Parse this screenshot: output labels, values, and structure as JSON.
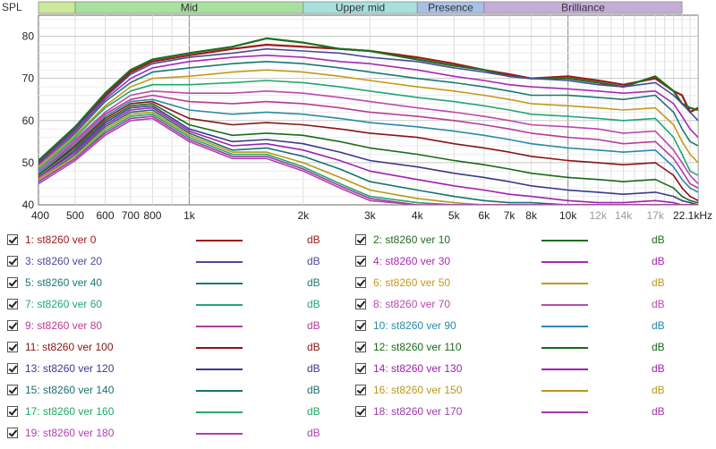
{
  "chart_data": {
    "type": "line",
    "ylabel": "SPL",
    "xlabel": "",
    "title": "",
    "x_scale": "log",
    "xlim": [
      400,
      22050
    ],
    "ylim": [
      40,
      85
    ],
    "yticks": [
      40,
      50,
      60,
      70,
      80
    ],
    "xticks": [
      {
        "v": 400,
        "label": "400",
        "muted": false
      },
      {
        "v": 500,
        "label": "500",
        "muted": false
      },
      {
        "v": 600,
        "label": "600",
        "muted": false
      },
      {
        "v": 700,
        "label": "700",
        "muted": false
      },
      {
        "v": 800,
        "label": "800",
        "muted": false
      },
      {
        "v": 1000,
        "label": "1k",
        "muted": false
      },
      {
        "v": 2000,
        "label": "2k",
        "muted": false
      },
      {
        "v": 3000,
        "label": "3k",
        "muted": false
      },
      {
        "v": 4000,
        "label": "4k",
        "muted": false
      },
      {
        "v": 5000,
        "label": "5k",
        "muted": false
      },
      {
        "v": 6000,
        "label": "6k",
        "muted": false
      },
      {
        "v": 7000,
        "label": "7k",
        "muted": false
      },
      {
        "v": 8000,
        "label": "8k",
        "muted": false
      },
      {
        "v": 10000,
        "label": "10k",
        "muted": false
      },
      {
        "v": 12000,
        "label": "12k",
        "muted": true
      },
      {
        "v": 14000,
        "label": "14k",
        "muted": true
      },
      {
        "v": 17000,
        "label": "17k",
        "muted": true
      },
      {
        "v": 22050,
        "label": "22.1kHz",
        "muted": false
      }
    ],
    "bands": [
      {
        "label": "",
        "from": 400,
        "to": 500,
        "color": "#cce89a"
      },
      {
        "label": "Mid",
        "from": 500,
        "to": 2000,
        "color": "#a8e0a0"
      },
      {
        "label": "Upper mid",
        "from": 2000,
        "to": 4000,
        "color": "#a8e0dc"
      },
      {
        "label": "Presence",
        "from": 4000,
        "to": 6000,
        "color": "#a8c0e4"
      },
      {
        "label": "Brilliance",
        "from": 6000,
        "to": 20000,
        "color": "#c4aed8"
      }
    ],
    "grid": true,
    "legend_position": "bottom",
    "series": [
      {
        "name": "1: st8260 ver 0",
        "unit": "dB",
        "color": "#a01818",
        "x": [
          400,
          500,
          600,
          700,
          800,
          1000,
          1300,
          1600,
          2000,
          2500,
          3000,
          4000,
          5000,
          6000,
          7000,
          8000,
          10000,
          12000,
          14000,
          17000,
          19000,
          20000,
          21000,
          22050
        ],
        "y": [
          50,
          58,
          66,
          71.5,
          74,
          75.5,
          77,
          78,
          77.5,
          77,
          76.5,
          75,
          73.5,
          72,
          71,
          70,
          70.5,
          69.5,
          68.5,
          70,
          67,
          66,
          62,
          63
        ]
      },
      {
        "name": "2: st8260 ver 10",
        "unit": "dB",
        "color": "#1e6e1e",
        "x": [
          400,
          500,
          600,
          700,
          800,
          1000,
          1300,
          1600,
          2000,
          2500,
          3000,
          4000,
          5000,
          6000,
          7000,
          8000,
          10000,
          12000,
          14000,
          17000,
          19000,
          20000,
          21000,
          22050
        ],
        "y": [
          50.5,
          58.5,
          66.5,
          72,
          74.5,
          76,
          77.5,
          79.5,
          78.5,
          77,
          76.5,
          74.5,
          73,
          72,
          70.5,
          70,
          70,
          69,
          68,
          70.5,
          67,
          64,
          63,
          62.5
        ]
      },
      {
        "name": "3: st8260 ver 20",
        "unit": "dB",
        "color": "#4a4a9a",
        "x": [
          400,
          500,
          600,
          700,
          800,
          1000,
          1300,
          1600,
          2000,
          2500,
          3000,
          4000,
          5000,
          6000,
          7000,
          8000,
          10000,
          12000,
          14000,
          17000,
          19000,
          20000,
          21000,
          22050
        ],
        "y": [
          50,
          58,
          65.5,
          71,
          73.5,
          75,
          76,
          77,
          76.5,
          76,
          75,
          74,
          72.5,
          71.5,
          70.5,
          70,
          69.5,
          68.5,
          68,
          69,
          66,
          64,
          62,
          60
        ]
      },
      {
        "name": "4: st8260 ver 30",
        "unit": "dB",
        "color": "#a82ab0",
        "x": [
          400,
          500,
          600,
          700,
          800,
          1000,
          1300,
          1600,
          2000,
          2500,
          3000,
          4000,
          5000,
          6000,
          7000,
          8000,
          10000,
          12000,
          14000,
          17000,
          19000,
          20000,
          21000,
          22050
        ],
        "y": [
          49.5,
          57.5,
          65,
          70,
          72.5,
          74,
          75,
          75.5,
          75,
          74,
          73.5,
          72,
          70.5,
          69.5,
          68.5,
          68,
          67.5,
          67,
          66.5,
          67,
          64,
          61,
          58,
          56
        ]
      },
      {
        "name": "5: st8260 ver 40",
        "unit": "dB",
        "color": "#1a7878",
        "x": [
          400,
          500,
          600,
          700,
          800,
          1000,
          1300,
          1600,
          2000,
          2500,
          3000,
          4000,
          5000,
          6000,
          7000,
          8000,
          10000,
          12000,
          14000,
          17000,
          19000,
          20000,
          21000,
          22050
        ],
        "y": [
          49,
          57,
          64.5,
          69,
          71.5,
          72.5,
          73.5,
          74,
          73.5,
          72.5,
          71.5,
          70,
          69,
          68,
          67,
          66,
          66,
          65.5,
          65,
          66,
          62,
          58,
          55,
          54
        ]
      },
      {
        "name": "6: st8260 ver 50",
        "unit": "dB",
        "color": "#c49a1a",
        "x": [
          400,
          500,
          600,
          700,
          800,
          1000,
          1300,
          1600,
          2000,
          2500,
          3000,
          4000,
          5000,
          6000,
          7000,
          8000,
          10000,
          12000,
          14000,
          17000,
          19000,
          20000,
          21000,
          22050
        ],
        "y": [
          49,
          56.5,
          63.5,
          68,
          70,
          70.5,
          71.5,
          72,
          71.5,
          70.5,
          69.5,
          68,
          67,
          66,
          65,
          64,
          63.5,
          63,
          62.5,
          63,
          59,
          55,
          52,
          50
        ]
      },
      {
        "name": "7: st8260 ver 60",
        "unit": "dB",
        "color": "#1fa870",
        "x": [
          400,
          500,
          600,
          700,
          800,
          1000,
          1300,
          1600,
          2000,
          2500,
          3000,
          4000,
          5000,
          6000,
          7000,
          8000,
          10000,
          12000,
          14000,
          17000,
          19000,
          20000,
          21000,
          22050
        ],
        "y": [
          48.5,
          56,
          63,
          67,
          68.5,
          68.5,
          69,
          69.5,
          69,
          68,
          67,
          65.5,
          64.5,
          63.5,
          62.5,
          61.5,
          61,
          60.5,
          60,
          60.5,
          56,
          52,
          48,
          47
        ]
      },
      {
        "name": "8: st8260 ver 70",
        "unit": "dB",
        "color": "#b84ab0",
        "x": [
          400,
          500,
          600,
          700,
          800,
          1000,
          1300,
          1600,
          2000,
          2500,
          3000,
          4000,
          5000,
          6000,
          7000,
          8000,
          10000,
          12000,
          14000,
          17000,
          19000,
          20000,
          21000,
          22050
        ],
        "y": [
          48,
          55.5,
          62,
          66,
          67,
          66.5,
          66.5,
          67,
          66.5,
          65.5,
          64.5,
          63,
          62,
          61,
          60,
          59,
          58.5,
          58,
          57,
          57.5,
          53,
          50,
          47,
          45
        ]
      },
      {
        "name": "9: st8260 ver 80",
        "unit": "dB",
        "color": "#b83a9a",
        "x": [
          400,
          500,
          600,
          700,
          800,
          1000,
          1300,
          1600,
          2000,
          2500,
          3000,
          4000,
          5000,
          6000,
          7000,
          8000,
          10000,
          12000,
          14000,
          17000,
          19000,
          20000,
          21000,
          22050
        ],
        "y": [
          47.5,
          55,
          61.5,
          65,
          66,
          64.5,
          64,
          64.5,
          64,
          63,
          62,
          61,
          60,
          59,
          58,
          57,
          56,
          55.5,
          54.5,
          55,
          51,
          48,
          45,
          44
        ]
      },
      {
        "name": "10: st8260 ver 90",
        "unit": "dB",
        "color": "#2a8aa8",
        "x": [
          400,
          500,
          600,
          700,
          800,
          1000,
          1300,
          1600,
          2000,
          2500,
          3000,
          4000,
          5000,
          6000,
          7000,
          8000,
          10000,
          12000,
          14000,
          17000,
          19000,
          20000,
          21000,
          22050
        ],
        "y": [
          47.5,
          54.5,
          61,
          64.5,
          65,
          62.5,
          61.5,
          62,
          61.5,
          60.5,
          59.5,
          58.5,
          57.5,
          56.5,
          55.5,
          54.5,
          53.5,
          53,
          52.5,
          53,
          49,
          46,
          44,
          43
        ]
      },
      {
        "name": "11: st8260 ver 100",
        "unit": "dB",
        "color": "#8a1414",
        "x": [
          400,
          500,
          600,
          700,
          800,
          1000,
          1300,
          1600,
          2000,
          2500,
          3000,
          4000,
          5000,
          6000,
          7000,
          8000,
          10000,
          12000,
          14000,
          17000,
          19000,
          20000,
          21000,
          22050
        ],
        "y": [
          47,
          54,
          60.5,
          64,
          64.5,
          60.5,
          59,
          59.5,
          59,
          58,
          57,
          56,
          54.5,
          53.5,
          52.5,
          51.5,
          50.5,
          50,
          49.5,
          50,
          47,
          44,
          42,
          41
        ]
      },
      {
        "name": "12: st8260 ver 110",
        "unit": "dB",
        "color": "#1a6a1a",
        "x": [
          400,
          500,
          600,
          700,
          800,
          1000,
          1300,
          1600,
          2000,
          2500,
          3000,
          4000,
          5000,
          6000,
          7000,
          8000,
          10000,
          12000,
          14000,
          17000,
          19000,
          20000,
          21000,
          22050
        ],
        "y": [
          47,
          53.5,
          60,
          63.5,
          64,
          59,
          56.5,
          57,
          56.5,
          55,
          53.5,
          52,
          50.5,
          49.5,
          48.5,
          47.5,
          46.5,
          46,
          45.5,
          46,
          44,
          42,
          41,
          40.5
        ]
      },
      {
        "name": "13: st8260 ver 120",
        "unit": "dB",
        "color": "#3a3a8a",
        "x": [
          400,
          500,
          600,
          700,
          800,
          1000,
          1300,
          1600,
          2000,
          2500,
          3000,
          4000,
          5000,
          6000,
          7000,
          8000,
          10000,
          12000,
          14000,
          17000,
          19000,
          20000,
          21000,
          22050
        ],
        "y": [
          46.5,
          53,
          59.5,
          63,
          63.5,
          58,
          55,
          55.5,
          54.5,
          52.5,
          50.5,
          49,
          47.5,
          46.5,
          45.5,
          44.5,
          43.5,
          43,
          42.5,
          43,
          42,
          41,
          40.5,
          40
        ]
      },
      {
        "name": "14: st8260 ver 130",
        "unit": "dB",
        "color": "#a020b0",
        "x": [
          400,
          500,
          600,
          700,
          800,
          1000,
          1300,
          1600,
          2000,
          2500,
          3000,
          4000,
          5000,
          6000,
          7000,
          8000,
          10000,
          12000,
          14000,
          17000,
          19000,
          20000,
          21000,
          22050
        ],
        "y": [
          46.5,
          52.5,
          59,
          62.5,
          63,
          57.5,
          54,
          54.5,
          53,
          50.5,
          48,
          46,
          44.5,
          43.5,
          42.5,
          42,
          41,
          40.5,
          40.5,
          41,
          40.5,
          40,
          40,
          40
        ]
      },
      {
        "name": "15: st8260 ver 140",
        "unit": "dB",
        "color": "#1a7070",
        "x": [
          400,
          500,
          600,
          700,
          800,
          1000,
          1300,
          1600,
          2000,
          2500,
          3000,
          4000,
          5000,
          6000,
          7000,
          8000,
          10000,
          12000,
          14000,
          17000,
          19000,
          20000,
          21000,
          22050
        ],
        "y": [
          46,
          52,
          58.5,
          62,
          62.5,
          57,
          53,
          53.5,
          51.5,
          48.5,
          45.5,
          43.5,
          42,
          41,
          40.5,
          40.5,
          40,
          40,
          40,
          40,
          40,
          40,
          40,
          40
        ]
      },
      {
        "name": "16: st8260 ver 150",
        "unit": "dB",
        "color": "#b89818",
        "x": [
          400,
          500,
          600,
          700,
          800,
          1000,
          1300,
          1600,
          2000,
          2500,
          3000,
          4000,
          5000,
          6000,
          7000,
          8000,
          10000,
          12000,
          14000,
          17000,
          19000,
          20000,
          21000,
          22050
        ],
        "y": [
          46,
          51.5,
          58,
          61.5,
          62,
          56.5,
          52.5,
          52.5,
          50,
          46.5,
          43.5,
          41.5,
          40.5,
          40,
          40,
          40,
          40,
          40,
          40,
          40,
          40,
          40,
          40,
          40
        ]
      },
      {
        "name": "17: st8260 ver 160",
        "unit": "dB",
        "color": "#20a868",
        "x": [
          400,
          500,
          600,
          700,
          800,
          1000,
          1300,
          1600,
          2000,
          2500,
          3000,
          4000,
          5000,
          6000,
          7000,
          8000,
          10000,
          12000,
          14000,
          17000,
          19000,
          20000,
          21000,
          22050
        ],
        "y": [
          45.5,
          51,
          57.5,
          61,
          61.5,
          56,
          52,
          52,
          49,
          45,
          42,
          40.5,
          40,
          40,
          40,
          40,
          40,
          40,
          40,
          40,
          40,
          40,
          40,
          40
        ]
      },
      {
        "name": "18: st8260 ver 170",
        "unit": "dB",
        "color": "#a03aa8",
        "x": [
          400,
          500,
          600,
          700,
          800,
          1000,
          1300,
          1600,
          2000,
          2500,
          3000,
          4000,
          5000,
          6000,
          7000,
          8000,
          10000,
          12000,
          14000,
          17000,
          19000,
          20000,
          21000,
          22050
        ],
        "y": [
          45.5,
          51,
          57,
          60.5,
          61,
          55.5,
          51.5,
          51.5,
          48.5,
          44.5,
          41.5,
          40,
          40,
          40,
          40,
          40,
          40,
          40,
          40,
          40,
          40,
          40,
          40,
          40
        ]
      },
      {
        "name": "19: st8260 ver 180",
        "unit": "dB",
        "color": "#b040b0",
        "x": [
          400,
          500,
          600,
          700,
          800,
          1000,
          1300,
          1600,
          2000,
          2500,
          3000,
          4000,
          5000,
          6000,
          7000,
          8000,
          10000,
          12000,
          14000,
          17000,
          19000,
          20000,
          21000,
          22050
        ],
        "y": [
          45,
          50.5,
          56.5,
          60,
          60.5,
          55,
          51,
          51,
          48,
          44,
          41,
          40,
          40,
          40,
          40,
          40,
          40,
          40,
          40,
          40,
          40,
          40,
          40,
          40
        ]
      }
    ]
  }
}
